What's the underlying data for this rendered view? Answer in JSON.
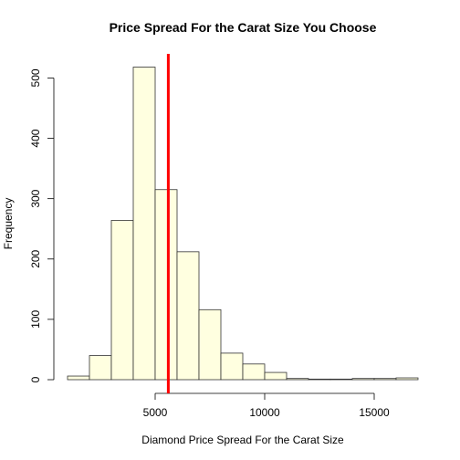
{
  "chart_data": {
    "type": "bar",
    "title": "Price Spread For the Carat Size You Choose",
    "xlabel": "Diamond Price Spread For the Carat Size",
    "ylabel": "Frequency",
    "bin_edges": [
      1000,
      2000,
      3000,
      4000,
      5000,
      6000,
      7000,
      8000,
      9000,
      10000,
      11000,
      12000,
      13000,
      14000,
      15000,
      16000,
      17000
    ],
    "values": [
      6,
      40,
      264,
      518,
      315,
      212,
      116,
      44,
      26,
      12,
      2,
      1,
      1,
      2,
      2,
      3
    ],
    "xlim": [
      1000,
      17000
    ],
    "ylim": [
      0,
      540
    ],
    "x_ticks": [
      5000,
      10000,
      15000
    ],
    "x_tick_labels": [
      "5000",
      "10000",
      "15000"
    ],
    "y_ticks": [
      0,
      100,
      200,
      300,
      400,
      500
    ],
    "y_tick_labels": [
      "0",
      "100",
      "200",
      "300",
      "400",
      "500"
    ],
    "reference_line": {
      "x": 5600,
      "color": "#ff0000"
    },
    "bar_color": "#ffffe0",
    "grid": false
  }
}
